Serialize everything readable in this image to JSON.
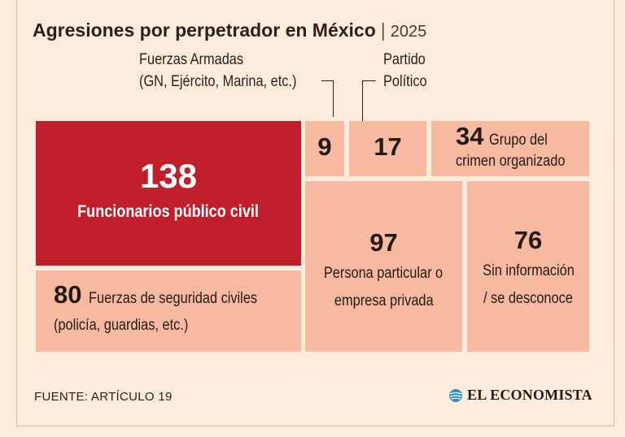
{
  "header": {
    "title": "Agresiones por perpetrador en México",
    "separator": "|",
    "year": "2025"
  },
  "annotations": {
    "fuerzas_armadas_line1": "Fuerzas Armadas",
    "fuerzas_armadas_line2": "(GN, Ejército, Marina, etc.)",
    "partido_line1": "Partido",
    "partido_line2": "Político"
  },
  "chart_data": {
    "type": "treemap",
    "title": "Agresiones por perpetrador en México",
    "subtitle": "2025",
    "items": [
      {
        "value": 138,
        "label": "Funcionarios público civil",
        "color": "#bf1e2a"
      },
      {
        "value": 80,
        "label_line1": "Fuerzas de seguridad civiles",
        "label_line2": "(policía, guardias, etc.)",
        "color": "#f7baa0"
      },
      {
        "value": 9,
        "label": "Fuerzas Armadas (GN, Ejército, Marina, etc.)",
        "color": "#f7baa0"
      },
      {
        "value": 17,
        "label": "Partido Político",
        "color": "#f7baa0"
      },
      {
        "value": 34,
        "label_line1": "Grupo del",
        "label_line2": "crimen organizado",
        "color": "#f7baa0"
      },
      {
        "value": 97,
        "label_line1": "Persona particular o",
        "label_line2": "empresa privada",
        "color": "#f7baa0"
      },
      {
        "value": 76,
        "label_line1": "Sin información",
        "label_line2": "/ se desconoce",
        "color": "#f7baa0"
      }
    ]
  },
  "footer": {
    "source": "FUENTE: ARTÍCULO 19",
    "brand": "EL ECONOMISTA"
  },
  "colors": {
    "background": "#fdebdc",
    "accent": "#bf1e2a",
    "tile": "#f7baa0",
    "brand_icon": "#2a8fc4"
  }
}
